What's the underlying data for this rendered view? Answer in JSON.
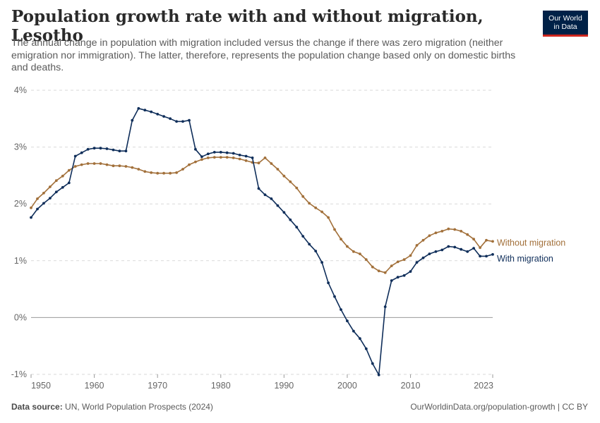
{
  "header": {
    "title": "Population growth rate with and without migration, Lesotho",
    "subtitle": "The annual change in population with migration included versus the change if there was zero migration (neither emigration nor immigration). The latter, therefore, represents the population change based only on domestic births and deaths."
  },
  "logo": {
    "line1": "Our World",
    "line2": "in Data"
  },
  "footer": {
    "source_label": "Data source:",
    "source_text": "UN, World Population Prospects (2024)",
    "url": "OurWorldinData.org/population-growth | CC BY"
  },
  "colors": {
    "with_migration": "#0f2e5a",
    "without_migration": "#a2703a",
    "grid": "#d9d9d9",
    "zero_line": "#9a9a9a"
  },
  "chart_data": {
    "type": "line",
    "x_start": 1950,
    "x_end": 2023,
    "xlim": [
      1950,
      2023
    ],
    "ylim": [
      -1,
      4
    ],
    "y_ticks": [
      -1,
      0,
      1,
      2,
      3,
      4
    ],
    "y_tick_labels": [
      "-1%",
      "0%",
      "1%",
      "2%",
      "3%",
      "4%"
    ],
    "x_ticks": [
      1950,
      1960,
      1970,
      1980,
      1990,
      2000,
      2010,
      2023
    ],
    "x_tick_labels": [
      "1950",
      "1960",
      "1970",
      "1980",
      "1990",
      "2000",
      "2010",
      "2023"
    ],
    "grid": "horizontal dashed",
    "series": [
      {
        "name": "Without migration",
        "color": "#a2703a",
        "values": [
          1.93,
          2.09,
          2.19,
          2.3,
          2.41,
          2.49,
          2.59,
          2.66,
          2.69,
          2.71,
          2.71,
          2.71,
          2.69,
          2.67,
          2.67,
          2.66,
          2.64,
          2.61,
          2.57,
          2.55,
          2.54,
          2.54,
          2.54,
          2.55,
          2.61,
          2.69,
          2.74,
          2.78,
          2.81,
          2.82,
          2.82,
          2.82,
          2.81,
          2.79,
          2.76,
          2.73,
          2.72,
          2.81,
          2.71,
          2.61,
          2.49,
          2.39,
          2.28,
          2.13,
          2.01,
          1.93,
          1.86,
          1.76,
          1.55,
          1.38,
          1.25,
          1.16,
          1.12,
          1.02,
          0.89,
          0.82,
          0.79,
          0.91,
          0.98,
          1.02,
          1.09,
          1.27,
          1.36,
          1.44,
          1.49,
          1.52,
          1.56,
          1.55,
          1.52,
          1.46,
          1.38,
          1.23,
          1.36,
          1.34
        ]
      },
      {
        "name": "With migration",
        "color": "#0f2e5a",
        "values": [
          1.76,
          1.91,
          2.01,
          2.1,
          2.21,
          2.29,
          2.37,
          2.84,
          2.9,
          2.96,
          2.98,
          2.98,
          2.97,
          2.95,
          2.93,
          2.93,
          3.47,
          3.68,
          3.65,
          3.62,
          3.58,
          3.54,
          3.5,
          3.45,
          3.45,
          3.47,
          2.96,
          2.83,
          2.88,
          2.91,
          2.91,
          2.9,
          2.89,
          2.86,
          2.84,
          2.81,
          2.27,
          2.16,
          2.09,
          1.97,
          1.85,
          1.72,
          1.59,
          1.43,
          1.29,
          1.17,
          0.97,
          0.61,
          0.37,
          0.14,
          -0.06,
          -0.24,
          -0.37,
          -0.55,
          -0.81,
          -1.01,
          0.19,
          0.65,
          0.71,
          0.74,
          0.81,
          0.97,
          1.05,
          1.12,
          1.16,
          1.19,
          1.25,
          1.24,
          1.2,
          1.16,
          1.22,
          1.08,
          1.08,
          1.11
        ]
      }
    ]
  }
}
